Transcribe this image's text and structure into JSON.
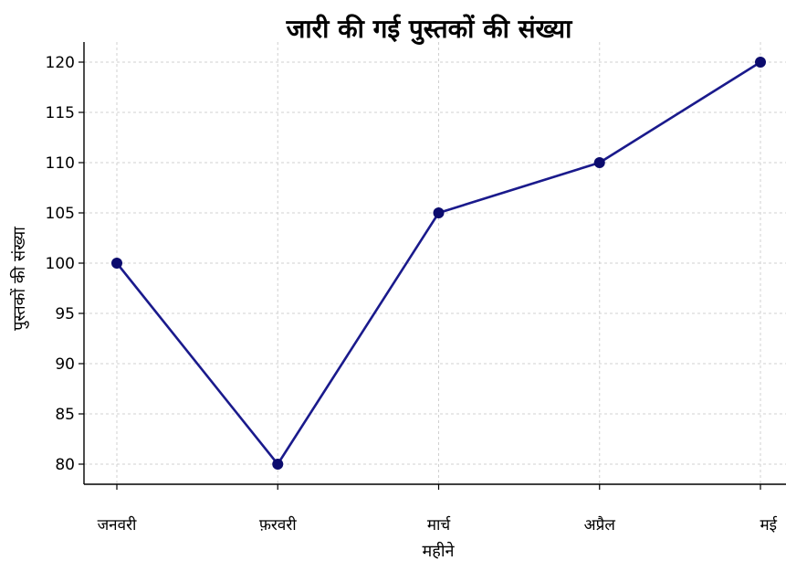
{
  "chart_data": {
    "type": "line",
    "title": "जारी की गई पुस्तकों की संख्या",
    "xlabel": "महीने",
    "ylabel": "पुस्तकों की संख्या",
    "categories": [
      "जनवरी",
      "फ़रवरी",
      "मार्च",
      "अप्रैल",
      "मई"
    ],
    "series": [
      {
        "values": [
          100,
          80,
          105,
          110,
          120
        ]
      }
    ],
    "ylim": [
      78,
      122
    ],
    "yticks": [
      80,
      85,
      90,
      95,
      100,
      105,
      110,
      115,
      120
    ],
    "grid": true,
    "line_color": "#1a1a8c",
    "marker_color": "#0c0c6e"
  }
}
